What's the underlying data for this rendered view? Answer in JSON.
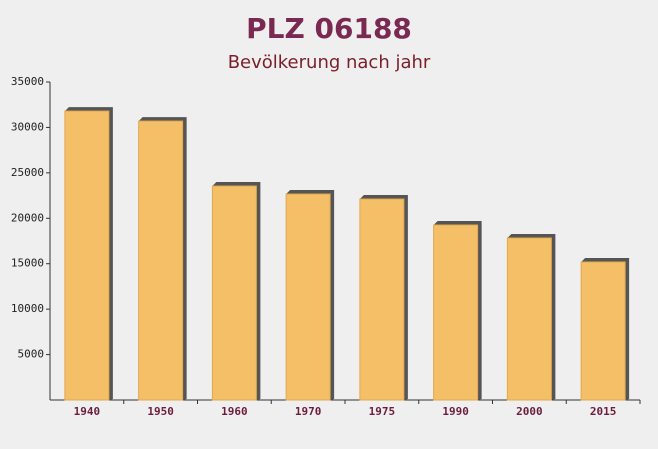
{
  "chart_data": {
    "type": "bar",
    "title": "PLZ 06188",
    "subtitle": "Bevölkerung nach jahr",
    "categories": [
      "1940",
      "1950",
      "1960",
      "1970",
      "1975",
      "1990",
      "2000",
      "2015"
    ],
    "values": [
      31800,
      30700,
      23550,
      22670,
      22120,
      19260,
      17830,
      15190
    ],
    "color": "#f5bf68",
    "ylim": [
      0,
      35000
    ],
    "yticks": [
      5000,
      10000,
      15000,
      20000,
      25000,
      30000,
      35000
    ]
  }
}
